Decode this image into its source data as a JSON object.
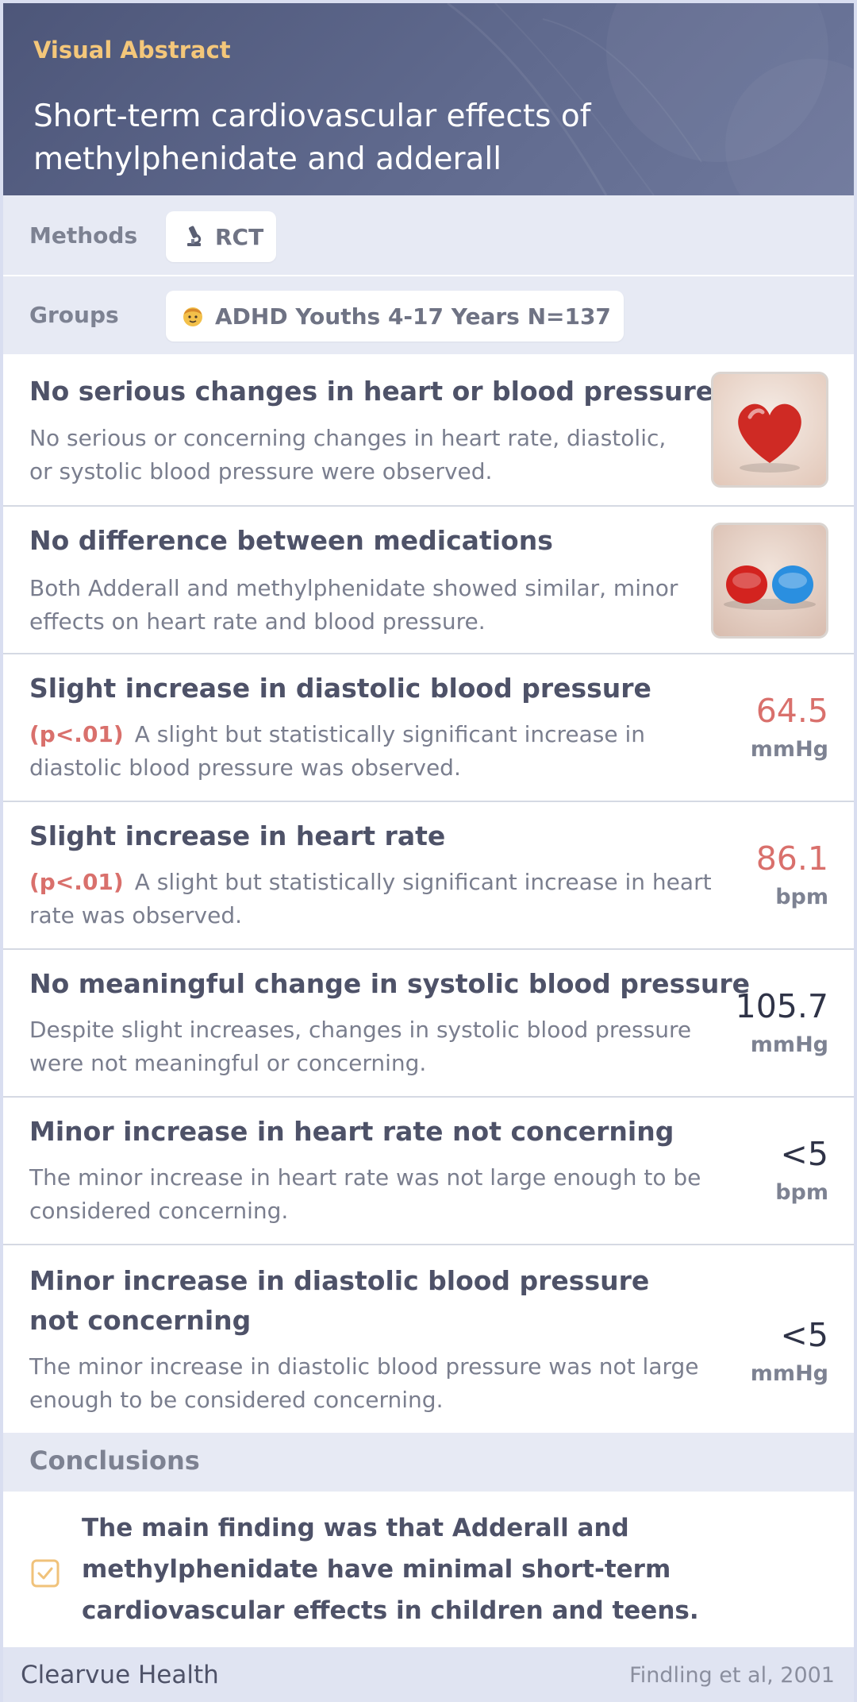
{
  "header": {
    "kicker": "Visual Abstract",
    "title": "Short-term cardiovascular effects of methylphenidate and adderall"
  },
  "methods": {
    "label": "Methods",
    "icon": "microscope-icon",
    "value": "RCT"
  },
  "groups": {
    "label": "Groups",
    "icon": "child-face-icon",
    "value": "ADHD Youths 4-17 Years N=137"
  },
  "findings": [
    {
      "title": "No serious changes in heart or blood pressure",
      "desc": "No serious or concerning changes in heart rate, diastolic, or systolic blood pressure were observed.",
      "image": "heart-image"
    },
    {
      "title": "No difference between medications",
      "desc": "Both Adderall and methylphenidate showed similar, minor effects on heart rate and blood pressure.",
      "image": "pills-image"
    },
    {
      "title": "Slight increase in diastolic blood pressure",
      "pval": "(p<.01)",
      "desc": "A slight but statistically significant increase in diastolic blood pressure was observed.",
      "value": "64.5",
      "unit": "mmHg",
      "value_color": "#d9706c"
    },
    {
      "title": "Slight increase in heart rate",
      "pval": "(p<.01)",
      "desc": "A slight but statistically significant increase in heart rate was observed.",
      "value": "86.1",
      "unit": "bpm",
      "value_color": "#d9706c"
    },
    {
      "title": "No meaningful change in systolic blood pressure",
      "desc": "Despite slight increases, changes in systolic blood pressure were not meaningful or concerning.",
      "value": "105.7",
      "unit": "mmHg",
      "value_color": "#2f3347"
    },
    {
      "title": "Minor increase in heart rate not concerning",
      "desc": "The minor increase in heart rate was not large enough to be considered concerning.",
      "value": "<5",
      "unit": "bpm",
      "value_color": "#2f3347"
    },
    {
      "title": "Minor increase in diastolic blood pressure not concerning",
      "desc": "The minor increase in diastolic blood pressure was not large enough to be considered concerning.",
      "value": "<5",
      "unit": "mmHg",
      "value_color": "#2f3347"
    }
  ],
  "conclusions": {
    "label": "Conclusions",
    "icon": "checkbox-icon",
    "text": "The main finding was that Adderall and methylphenidate have minimal short-term cardiovascular effects in children and teens."
  },
  "footer": {
    "brand": "Clearvue Health",
    "citation": "Findling et al, 2001"
  },
  "colors": {
    "header_bg": "#555f83",
    "kicker": "#f4c77a",
    "significance": "#d9706c",
    "band": "#e7eaf4",
    "check": "#f0c27a"
  }
}
